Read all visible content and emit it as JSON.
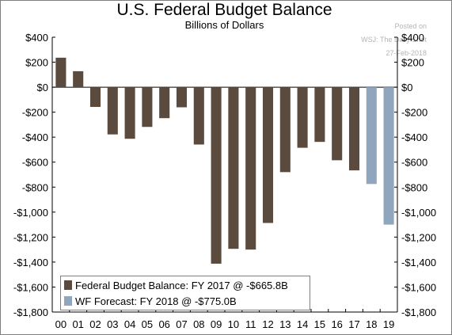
{
  "header": {
    "title": "U.S. Federal Budget Balance",
    "subtitle": "Billions of Dollars"
  },
  "watermark": {
    "line1": "Posted on",
    "line2": "WSJ: The Daily Shot",
    "line3": "27-Feb-2018"
  },
  "legend": {
    "actual_label": "Federal Budget Balance: FY 2017 @ -$665.8B",
    "forecast_label": "WF Forecast: FY 2018 @ -$775.0B"
  },
  "colors": {
    "actual": "#5b4b3f",
    "forecast": "#8fa6bd"
  },
  "chart_data": {
    "type": "bar",
    "title": "U.S. Federal Budget Balance",
    "subtitle": "Billions of Dollars",
    "ylim": [
      -1800,
      400
    ],
    "yticks": [
      400,
      200,
      0,
      -200,
      -400,
      -600,
      -800,
      -1000,
      -1200,
      -1400,
      -1600,
      -1800
    ],
    "ytick_labels": [
      "$400",
      "$200",
      "$0",
      "-$200",
      "-$400",
      "-$600",
      "-$800",
      "-$1,000",
      "-$1,200",
      "-$1,400",
      "-$1,600",
      "-$1,800"
    ],
    "categories": [
      "00",
      "01",
      "02",
      "03",
      "04",
      "05",
      "06",
      "07",
      "08",
      "09",
      "10",
      "11",
      "12",
      "13",
      "14",
      "15",
      "16",
      "17",
      "18",
      "19"
    ],
    "series": [
      {
        "name": "Federal Budget Balance: FY 2017 @ -$665.8B",
        "values": [
          236,
          128,
          -158,
          -378,
          -413,
          -318,
          -248,
          -161,
          -459,
          -1413,
          -1294,
          -1300,
          -1087,
          -680,
          -485,
          -438,
          -585,
          -666,
          null,
          null
        ]
      },
      {
        "name": "WF Forecast: FY 2018 @ -$775.0B",
        "values": [
          null,
          null,
          null,
          null,
          null,
          null,
          null,
          null,
          null,
          null,
          null,
          null,
          null,
          null,
          null,
          null,
          null,
          null,
          -775,
          -1100
        ]
      }
    ],
    "grid": false,
    "legend_position": "bottom-left"
  }
}
